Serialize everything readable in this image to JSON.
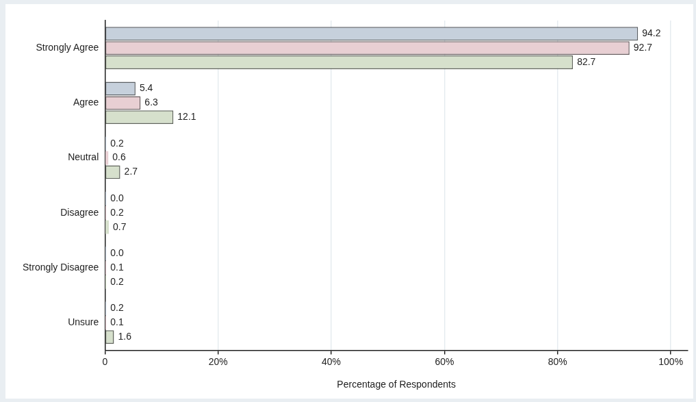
{
  "chart_data": {
    "type": "bar",
    "orientation": "horizontal",
    "xlabel": "Percentage of Respondents",
    "categories": [
      "Strongly Agree",
      "Agree",
      "Neutral",
      "Disagree",
      "Strongly Disagree",
      "Unsure"
    ],
    "series": [
      {
        "color": "#c6d0dc",
        "values": [
          94.2,
          5.4,
          0.2,
          0.0,
          0.0,
          0.2
        ],
        "value_labels": [
          "94.2",
          "5.4",
          "0.2",
          "0.0",
          "0.0",
          "0.2"
        ]
      },
      {
        "color": "#e8cfd3",
        "values": [
          92.7,
          6.3,
          0.6,
          0.2,
          0.1,
          0.1
        ],
        "value_labels": [
          "92.7",
          "6.3",
          "0.6",
          "0.2",
          "0.1",
          "0.1"
        ]
      },
      {
        "color": "#d6e0cc",
        "values": [
          82.7,
          12.1,
          2.7,
          0.7,
          0.2,
          1.6
        ],
        "value_labels": [
          "82.7",
          "12.1",
          "2.7",
          "0.7",
          "0.2",
          "1.6"
        ]
      }
    ],
    "xlim": [
      0,
      103
    ],
    "xticks": [
      0,
      {
        "value": 20,
        "label": "20%"
      },
      {
        "value": 40,
        "label": "40%"
      },
      {
        "value": 60,
        "label": "60%"
      },
      {
        "value": 80,
        "label": "80%"
      },
      {
        "value": 100,
        "label": "100%"
      }
    ],
    "grid": "x",
    "legend": false
  }
}
